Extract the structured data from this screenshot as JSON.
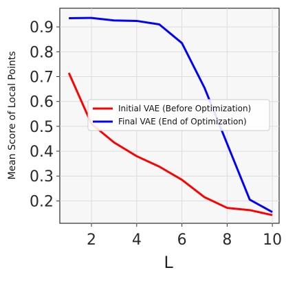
{
  "chart_data": {
    "type": "line",
    "xlabel": "L",
    "ylabel": "Mean Score of Local Points",
    "xlim": [
      0.6,
      10.3
    ],
    "ylim": [
      0.11,
      0.975
    ],
    "xticks": [
      2,
      4,
      6,
      8,
      10
    ],
    "yticks": [
      0.2,
      0.3,
      0.4,
      0.5,
      0.6,
      0.7,
      0.8,
      0.9
    ],
    "xtick_labels": [
      "2",
      "4",
      "6",
      "8",
      "10"
    ],
    "ytick_labels": [
      "0.2",
      "0.3",
      "0.4",
      "0.5",
      "0.6",
      "0.7",
      "0.8",
      "0.9"
    ],
    "grid": true,
    "legend_position": "center-right",
    "series": [
      {
        "name": "Initial VAE (Before Optimization)",
        "color": "#ff0000",
        "x": [
          1,
          2,
          3,
          4,
          5,
          6,
          7,
          8,
          9,
          10
        ],
        "y": [
          0.715,
          0.51,
          0.435,
          0.38,
          0.338,
          0.285,
          0.215,
          0.172,
          0.163,
          0.143
        ]
      },
      {
        "name": "Final VAE (End of Optimization)",
        "color": "#0000ff",
        "x": [
          1,
          2,
          3,
          4,
          5,
          6,
          7,
          8,
          9,
          10
        ],
        "y": [
          0.935,
          0.936,
          0.926,
          0.924,
          0.91,
          0.835,
          0.655,
          0.43,
          0.205,
          0.155
        ]
      }
    ]
  }
}
